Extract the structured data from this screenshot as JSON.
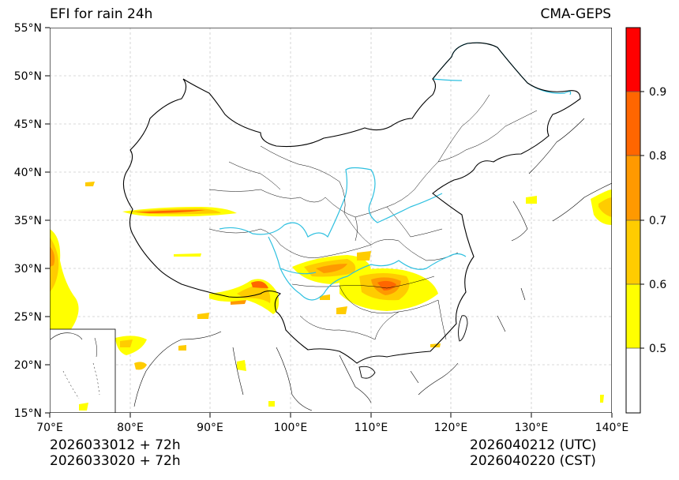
{
  "header": {
    "title": "EFI for rain 24h",
    "model": "CMA-GEPS"
  },
  "axes": {
    "lat_ticks": [
      "15°N",
      "20°N",
      "25°N",
      "30°N",
      "35°N",
      "40°N",
      "45°N",
      "50°N",
      "55°N"
    ],
    "lon_ticks": [
      "70°E",
      "80°E",
      "90°E",
      "100°E",
      "110°E",
      "120°E",
      "130°E",
      "140°E"
    ]
  },
  "colorbar": {
    "labels": [
      "0.5",
      "0.6",
      "0.7",
      "0.8",
      "0.9"
    ],
    "colors": [
      "#ffffff",
      "#ffff00",
      "#ffcc00",
      "#ff9900",
      "#ff6600",
      "#ff0000"
    ]
  },
  "footer": {
    "init_utc": "2026033012 + 72h",
    "init_cst": "2026033020 + 72h",
    "valid_utc": "2026040212 (UTC)",
    "valid_cst": "2026040220 (CST)"
  },
  "map_colors": {
    "river": "#2ec0e0",
    "border": "#000000",
    "grid": "#cccccc"
  }
}
